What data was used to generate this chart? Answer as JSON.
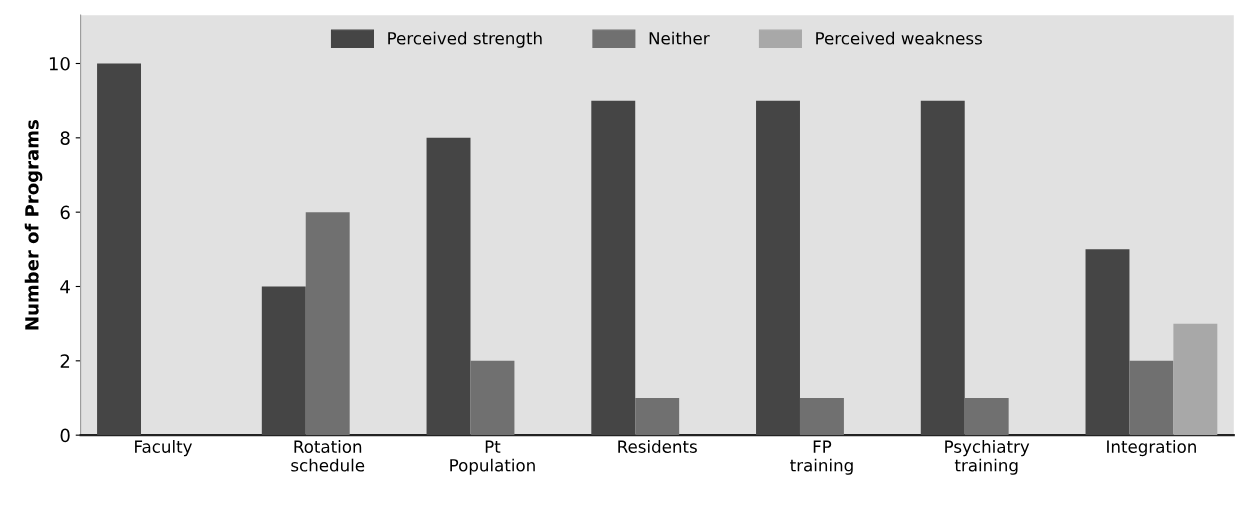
{
  "chart_data": {
    "type": "bar",
    "ylabel": "Number of Programs",
    "categories": [
      "Faculty",
      "Rotation\nschedule",
      "Pt\nPopulation",
      "Residents",
      "FP\ntraining",
      "Psychiatry\ntraining",
      "Integration"
    ],
    "series": [
      {
        "name": "Perceived strength",
        "color": "#454545",
        "values": [
          10,
          4,
          8,
          9,
          9,
          9,
          5
        ]
      },
      {
        "name": "Neither",
        "color": "#707070",
        "values": [
          0,
          6,
          2,
          1,
          1,
          1,
          2
        ]
      },
      {
        "name": "Perceived weakness",
        "color": "#a8a8a8",
        "values": [
          0,
          0,
          0,
          0,
          0,
          0,
          3
        ]
      }
    ],
    "ylim": [
      0,
      11.3
    ],
    "yticks": [
      0,
      2,
      4,
      6,
      8,
      10
    ],
    "grid": false,
    "legend": "top"
  }
}
